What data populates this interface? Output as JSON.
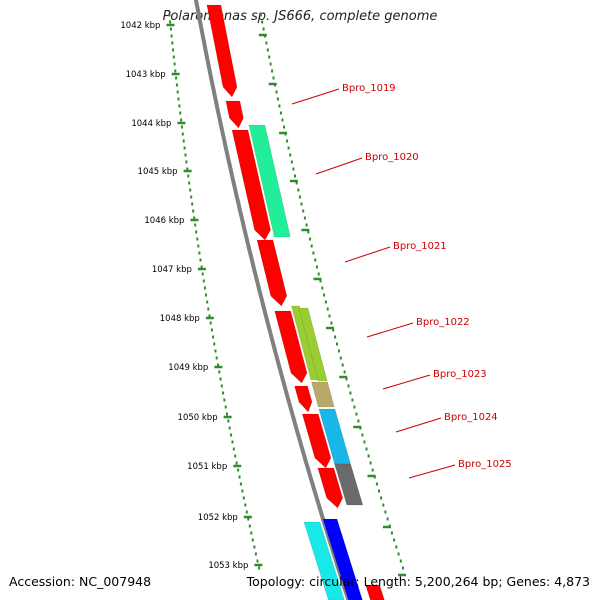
{
  "title": "Polaromonas sp. JS666, complete genome",
  "accession": "Accession: NC_007948",
  "topology": "Topology: circular; Length: 5,200,264 bp; Genes: 4,873",
  "scale_labels": [
    "1042 kbp",
    "1043 kbp",
    "1044 kbp",
    "1045 kbp",
    "1046 kbp",
    "1047 kbp",
    "1048 kbp",
    "1049 kbp",
    "1050 kbp",
    "1051 kbp",
    "1052 kbp",
    "1053 kbp"
  ],
  "gene_labels": [
    "Bpro_1019",
    "Bpro_1020",
    "Bpro_1021",
    "Bpro_1022",
    "Bpro_1023",
    "Bpro_1024",
    "Bpro_1025"
  ],
  "colors": {
    "backbone": "#808080",
    "strand_red": "#ff0000",
    "tick_green": "#2e8b2e",
    "label_red": "#cc0000",
    "gene_1020": "#22ee99",
    "gene_1022": "#9acd32",
    "gene_1023": "#b8a96a",
    "gene_1024": "#19b6e8",
    "gene_1025": "#6a6a6a",
    "gene_cyan": "#19e8e8",
    "gene_blue": "#0000ff"
  }
}
